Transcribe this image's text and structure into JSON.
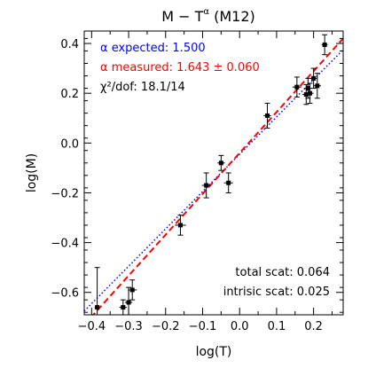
{
  "chart_data": {
    "type": "scatter",
    "title": "M − T",
    "title_superscript": "α",
    "title_suffix": " (M12)",
    "xlabel": "log(T)",
    "ylabel": "log(M)",
    "xlim": [
      -0.42,
      0.28
    ],
    "ylim": [
      -0.69,
      0.45
    ],
    "x_ticks": [
      -0.4,
      -0.3,
      -0.2,
      -0.1,
      0.0,
      0.1,
      0.2
    ],
    "x_tick_labels": [
      "−0.4",
      "−0.3",
      "−0.2",
      "−0.1",
      "0.0",
      "0.1",
      "0.2"
    ],
    "y_ticks": [
      -0.6,
      -0.4,
      -0.2,
      0.0,
      0.2,
      0.4
    ],
    "y_tick_labels": [
      "−0.6",
      "−0.4",
      "−0.2",
      "0.0",
      "0.2",
      "0.4"
    ],
    "grid": false,
    "legend": {
      "placement": "top-left",
      "entries": [
        {
          "text": "α expected: 1.500",
          "color": "#0000ff"
        },
        {
          "text": "α measured: 1.643 ± 0.060",
          "color": "#ff0000"
        },
        {
          "text": "χ²/dof: 18.1/14",
          "color": "#000000"
        }
      ]
    },
    "annotations": [
      {
        "text": "total scat: 0.064",
        "placement": "bottom-right"
      },
      {
        "text": "intrisic scat: 0.025",
        "placement": "bottom-right"
      }
    ],
    "fits": [
      {
        "name": "expected",
        "slope": 1.5,
        "intercept": -0.045,
        "color": "#0000ff",
        "style": "dotted"
      },
      {
        "name": "measured",
        "slope": 1.643,
        "intercept": -0.04,
        "color": "#ff0000",
        "style": "dashed"
      }
    ],
    "points": [
      {
        "x": -0.385,
        "y": -0.66,
        "xerr": 0.007,
        "yerr": 0.16
      },
      {
        "x": -0.315,
        "y": -0.66,
        "xerr": 0.01,
        "yerr": 0.03
      },
      {
        "x": -0.3,
        "y": -0.64,
        "xerr": 0.01,
        "yerr": 0.06
      },
      {
        "x": -0.29,
        "y": -0.59,
        "xerr": 0.012,
        "yerr": 0.04
      },
      {
        "x": -0.16,
        "y": -0.33,
        "xerr": 0.015,
        "yerr": 0.04
      },
      {
        "x": -0.09,
        "y": -0.17,
        "xerr": 0.012,
        "yerr": 0.05
      },
      {
        "x": -0.05,
        "y": -0.08,
        "xerr": 0.01,
        "yerr": 0.03
      },
      {
        "x": -0.03,
        "y": -0.16,
        "xerr": 0.012,
        "yerr": 0.04
      },
      {
        "x": 0.075,
        "y": 0.11,
        "xerr": 0.01,
        "yerr": 0.05
      },
      {
        "x": 0.155,
        "y": 0.225,
        "xerr": 0.012,
        "yerr": 0.04
      },
      {
        "x": 0.18,
        "y": 0.195,
        "xerr": 0.01,
        "yerr": 0.04
      },
      {
        "x": 0.185,
        "y": 0.22,
        "xerr": 0.01,
        "yerr": 0.04
      },
      {
        "x": 0.19,
        "y": 0.2,
        "xerr": 0.01,
        "yerr": 0.04
      },
      {
        "x": 0.2,
        "y": 0.26,
        "xerr": 0.01,
        "yerr": 0.04
      },
      {
        "x": 0.21,
        "y": 0.23,
        "xerr": 0.01,
        "yerr": 0.05
      },
      {
        "x": 0.23,
        "y": 0.395,
        "xerr": 0.008,
        "yerr": 0.04
      }
    ]
  }
}
